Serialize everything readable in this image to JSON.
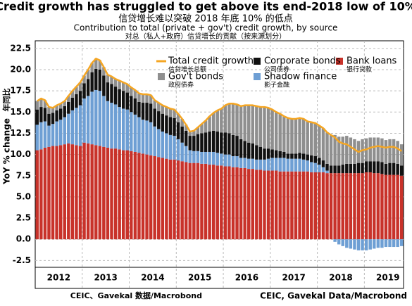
{
  "chart_data": {
    "type": "bar",
    "title": "Credit growth has struggled to get above its end-2018 low of 10%",
    "title_zh": "信贷增长难以突破 2018 年底 10% 的低点",
    "subtitle": "Contribution to total (private + gov't) credit growth, by source",
    "subtitle_zh": "对总（私人+政府）信贷增长的贡献（按来源划分）",
    "y_label": "YoY % change",
    "y_label_zh": "年同比",
    "source_zh": "CEIC、Gavekal 数据/Macrobond",
    "source": "CEIC, Gavekal Data/Macrobond",
    "stacked": true,
    "grid": true,
    "ylim": [
      -3.3,
      23.4
    ],
    "yticks": [
      -2.5,
      {
        "value": 0,
        "label": "0.0"
      },
      2.5,
      {
        "value": 5,
        "label": "5.0"
      },
      7.5,
      {
        "value": 10,
        "label": "10.0"
      },
      12.5,
      {
        "value": 15,
        "label": "15.0"
      },
      17.5,
      {
        "value": 20,
        "label": "20.0"
      },
      22.5
    ],
    "categories": [
      null,
      null,
      null,
      null,
      null,
      null,
      "2012",
      null,
      null,
      null,
      null,
      null,
      null,
      null,
      null,
      null,
      null,
      null,
      "2013",
      null,
      null,
      null,
      null,
      null,
      null,
      null,
      null,
      null,
      null,
      null,
      "2014",
      null,
      null,
      null,
      null,
      null,
      null,
      null,
      null,
      null,
      null,
      null,
      "2015",
      null,
      null,
      null,
      null,
      null,
      null,
      null,
      null,
      null,
      null,
      null,
      "2016",
      null,
      null,
      null,
      null,
      null,
      null,
      null,
      null,
      null,
      null,
      null,
      "2017",
      null,
      null,
      null,
      null,
      null,
      null,
      null,
      null,
      null,
      null,
      null,
      "2018",
      null,
      null,
      null,
      null,
      null,
      null,
      null,
      null,
      null,
      null,
      null,
      "2019",
      null,
      null,
      null
    ],
    "series": [
      {
        "name": "Bank loans",
        "name_zh": "银行贷款",
        "type": "bar",
        "color": "#c8322a",
        "values": [
          10.5,
          10.6,
          10.8,
          10.9,
          11.0,
          11.0,
          11.1,
          11.2,
          11.3,
          11.2,
          11.1,
          11.0,
          11.4,
          11.3,
          11.2,
          11.1,
          11.0,
          10.9,
          10.8,
          10.7,
          10.7,
          10.6,
          10.5,
          10.5,
          10.4,
          10.3,
          10.2,
          10.1,
          10.0,
          9.9,
          9.8,
          9.7,
          9.6,
          9.5,
          9.4,
          9.4,
          9.3,
          9.2,
          9.1,
          9.0,
          9.0,
          9.0,
          8.9,
          8.9,
          8.8,
          8.8,
          8.7,
          8.7,
          8.6,
          8.6,
          8.5,
          8.5,
          8.4,
          8.4,
          8.3,
          8.3,
          8.2,
          8.2,
          8.1,
          8.1,
          8.1,
          8.1,
          8.0,
          8.0,
          8.0,
          8.0,
          8.0,
          8.0,
          8.0,
          8.0,
          7.9,
          7.9,
          7.9,
          7.9,
          7.8,
          7.8,
          7.8,
          7.8,
          7.8,
          7.8,
          7.8,
          7.8,
          7.8,
          7.8,
          7.9,
          7.9,
          7.8,
          7.8,
          7.7,
          7.6,
          7.6,
          7.6,
          7.6,
          7.5
        ]
      },
      {
        "name": "Shadow finance",
        "name_zh": "影子金融",
        "type": "bar",
        "color": "#6e9fd4",
        "values": [
          3.0,
          3.2,
          3.1,
          2.5,
          2.6,
          2.9,
          3.0,
          3.2,
          3.5,
          4.0,
          4.4,
          4.8,
          5.2,
          5.6,
          6.2,
          6.5,
          6.5,
          6.0,
          5.5,
          5.4,
          5.2,
          5.0,
          4.9,
          4.8,
          4.6,
          4.4,
          4.2,
          4.0,
          4.0,
          3.9,
          3.5,
          3.3,
          3.1,
          3.0,
          2.9,
          2.8,
          2.5,
          2.2,
          1.9,
          1.5,
          1.4,
          1.4,
          1.4,
          1.4,
          1.5,
          1.5,
          1.5,
          1.4,
          1.4,
          1.4,
          1.3,
          1.3,
          1.2,
          1.2,
          1.2,
          1.2,
          1.2,
          1.2,
          1.3,
          1.4,
          1.5,
          1.5,
          1.6,
          1.6,
          1.5,
          1.5,
          1.5,
          1.5,
          1.4,
          1.3,
          1.2,
          1.1,
          0.9,
          0.6,
          0.3,
          0.0,
          -0.3,
          -0.6,
          -0.8,
          -1.0,
          -1.1,
          -1.2,
          -1.3,
          -1.3,
          -1.3,
          -1.2,
          -1.1,
          -1.0,
          -1.0,
          -0.9,
          -0.9,
          -0.9,
          -0.9,
          -0.8
        ]
      },
      {
        "name": "Corporate bonds",
        "name_zh": "公司债券",
        "type": "bar",
        "color": "#111111",
        "values": [
          1.8,
          1.8,
          1.6,
          1.4,
          1.3,
          1.3,
          1.3,
          1.3,
          1.4,
          1.5,
          1.6,
          1.7,
          1.8,
          2.0,
          2.3,
          2.5,
          2.5,
          2.4,
          2.2,
          2.2,
          2.1,
          2.1,
          2.1,
          2.0,
          1.9,
          1.9,
          1.8,
          2.0,
          2.1,
          2.2,
          2.1,
          2.1,
          2.1,
          2.1,
          2.1,
          2.1,
          2.0,
          1.9,
          1.8,
          1.7,
          1.8,
          2.0,
          2.2,
          2.3,
          2.4,
          2.5,
          2.5,
          2.5,
          2.6,
          2.5,
          2.5,
          2.4,
          2.2,
          2.0,
          1.9,
          1.8,
          1.7,
          1.5,
          1.3,
          1.2,
          1.0,
          0.9,
          0.8,
          0.7,
          0.6,
          0.6,
          0.6,
          0.7,
          0.7,
          0.7,
          0.8,
          0.8,
          0.8,
          0.8,
          0.8,
          0.9,
          0.9,
          0.9,
          1.0,
          1.1,
          1.1,
          1.1,
          1.2,
          1.2,
          1.3,
          1.3,
          1.4,
          1.4,
          1.4,
          1.3,
          1.4,
          1.4,
          1.3,
          1.2
        ]
      },
      {
        "name": "Gov't bonds",
        "name_zh": "政府债券",
        "type": "bar",
        "color": "#8f8f8f",
        "values": [
          1.0,
          1.0,
          0.9,
          0.8,
          0.6,
          0.6,
          0.6,
          0.6,
          0.7,
          0.8,
          0.9,
          1.0,
          0.9,
          1.1,
          1.1,
          1.2,
          1.1,
          1.0,
          0.9,
          0.9,
          0.9,
          1.0,
          1.0,
          1.0,
          1.0,
          1.0,
          1.0,
          1.0,
          1.0,
          1.0,
          1.0,
          1.0,
          1.0,
          1.0,
          1.0,
          1.0,
          1.0,
          0.9,
          0.7,
          0.5,
          0.6,
          0.8,
          1.1,
          1.4,
          1.8,
          2.1,
          2.5,
          2.8,
          3.2,
          3.5,
          3.7,
          3.7,
          3.9,
          4.2,
          4.4,
          4.5,
          4.6,
          4.7,
          4.9,
          4.8,
          4.7,
          4.5,
          4.4,
          4.2,
          4.2,
          4.1,
          4.1,
          4.1,
          4.1,
          3.9,
          3.9,
          3.9,
          3.8,
          3.8,
          3.7,
          3.6,
          3.6,
          3.4,
          3.3,
          3.3,
          3.1,
          2.9,
          2.6,
          2.8,
          2.7,
          2.8,
          2.8,
          2.8,
          2.8,
          2.8,
          2.8,
          2.8,
          2.7,
          2.5
        ]
      },
      {
        "name": "Total credit growth",
        "name_zh": "信贷增长总额",
        "type": "line",
        "color": "#f5a623",
        "values": [
          16.3,
          16.6,
          16.4,
          15.6,
          15.5,
          15.8,
          16.0,
          16.3,
          16.9,
          17.5,
          18.0,
          18.5,
          19.3,
          20.0,
          20.8,
          21.3,
          21.1,
          20.3,
          19.4,
          19.2,
          18.9,
          18.7,
          18.5,
          18.3,
          17.9,
          17.6,
          17.2,
          17.1,
          17.1,
          17.0,
          16.4,
          16.1,
          15.8,
          15.6,
          15.4,
          15.3,
          14.8,
          14.2,
          13.5,
          12.7,
          12.8,
          13.2,
          13.6,
          14.0,
          14.5,
          14.9,
          15.2,
          15.4,
          15.8,
          16.0,
          16.0,
          15.9,
          15.7,
          15.8,
          15.8,
          15.8,
          15.7,
          15.6,
          15.6,
          15.5,
          15.3,
          15.0,
          14.8,
          14.5,
          14.3,
          14.2,
          14.2,
          14.3,
          14.2,
          13.9,
          13.8,
          13.7,
          13.4,
          13.1,
          12.6,
          12.3,
          12.0,
          11.5,
          11.3,
          11.2,
          10.9,
          10.6,
          10.3,
          10.5,
          10.6,
          10.8,
          10.9,
          11.0,
          10.9,
          10.8,
          10.9,
          10.9,
          10.7,
          10.4
        ]
      }
    ]
  }
}
